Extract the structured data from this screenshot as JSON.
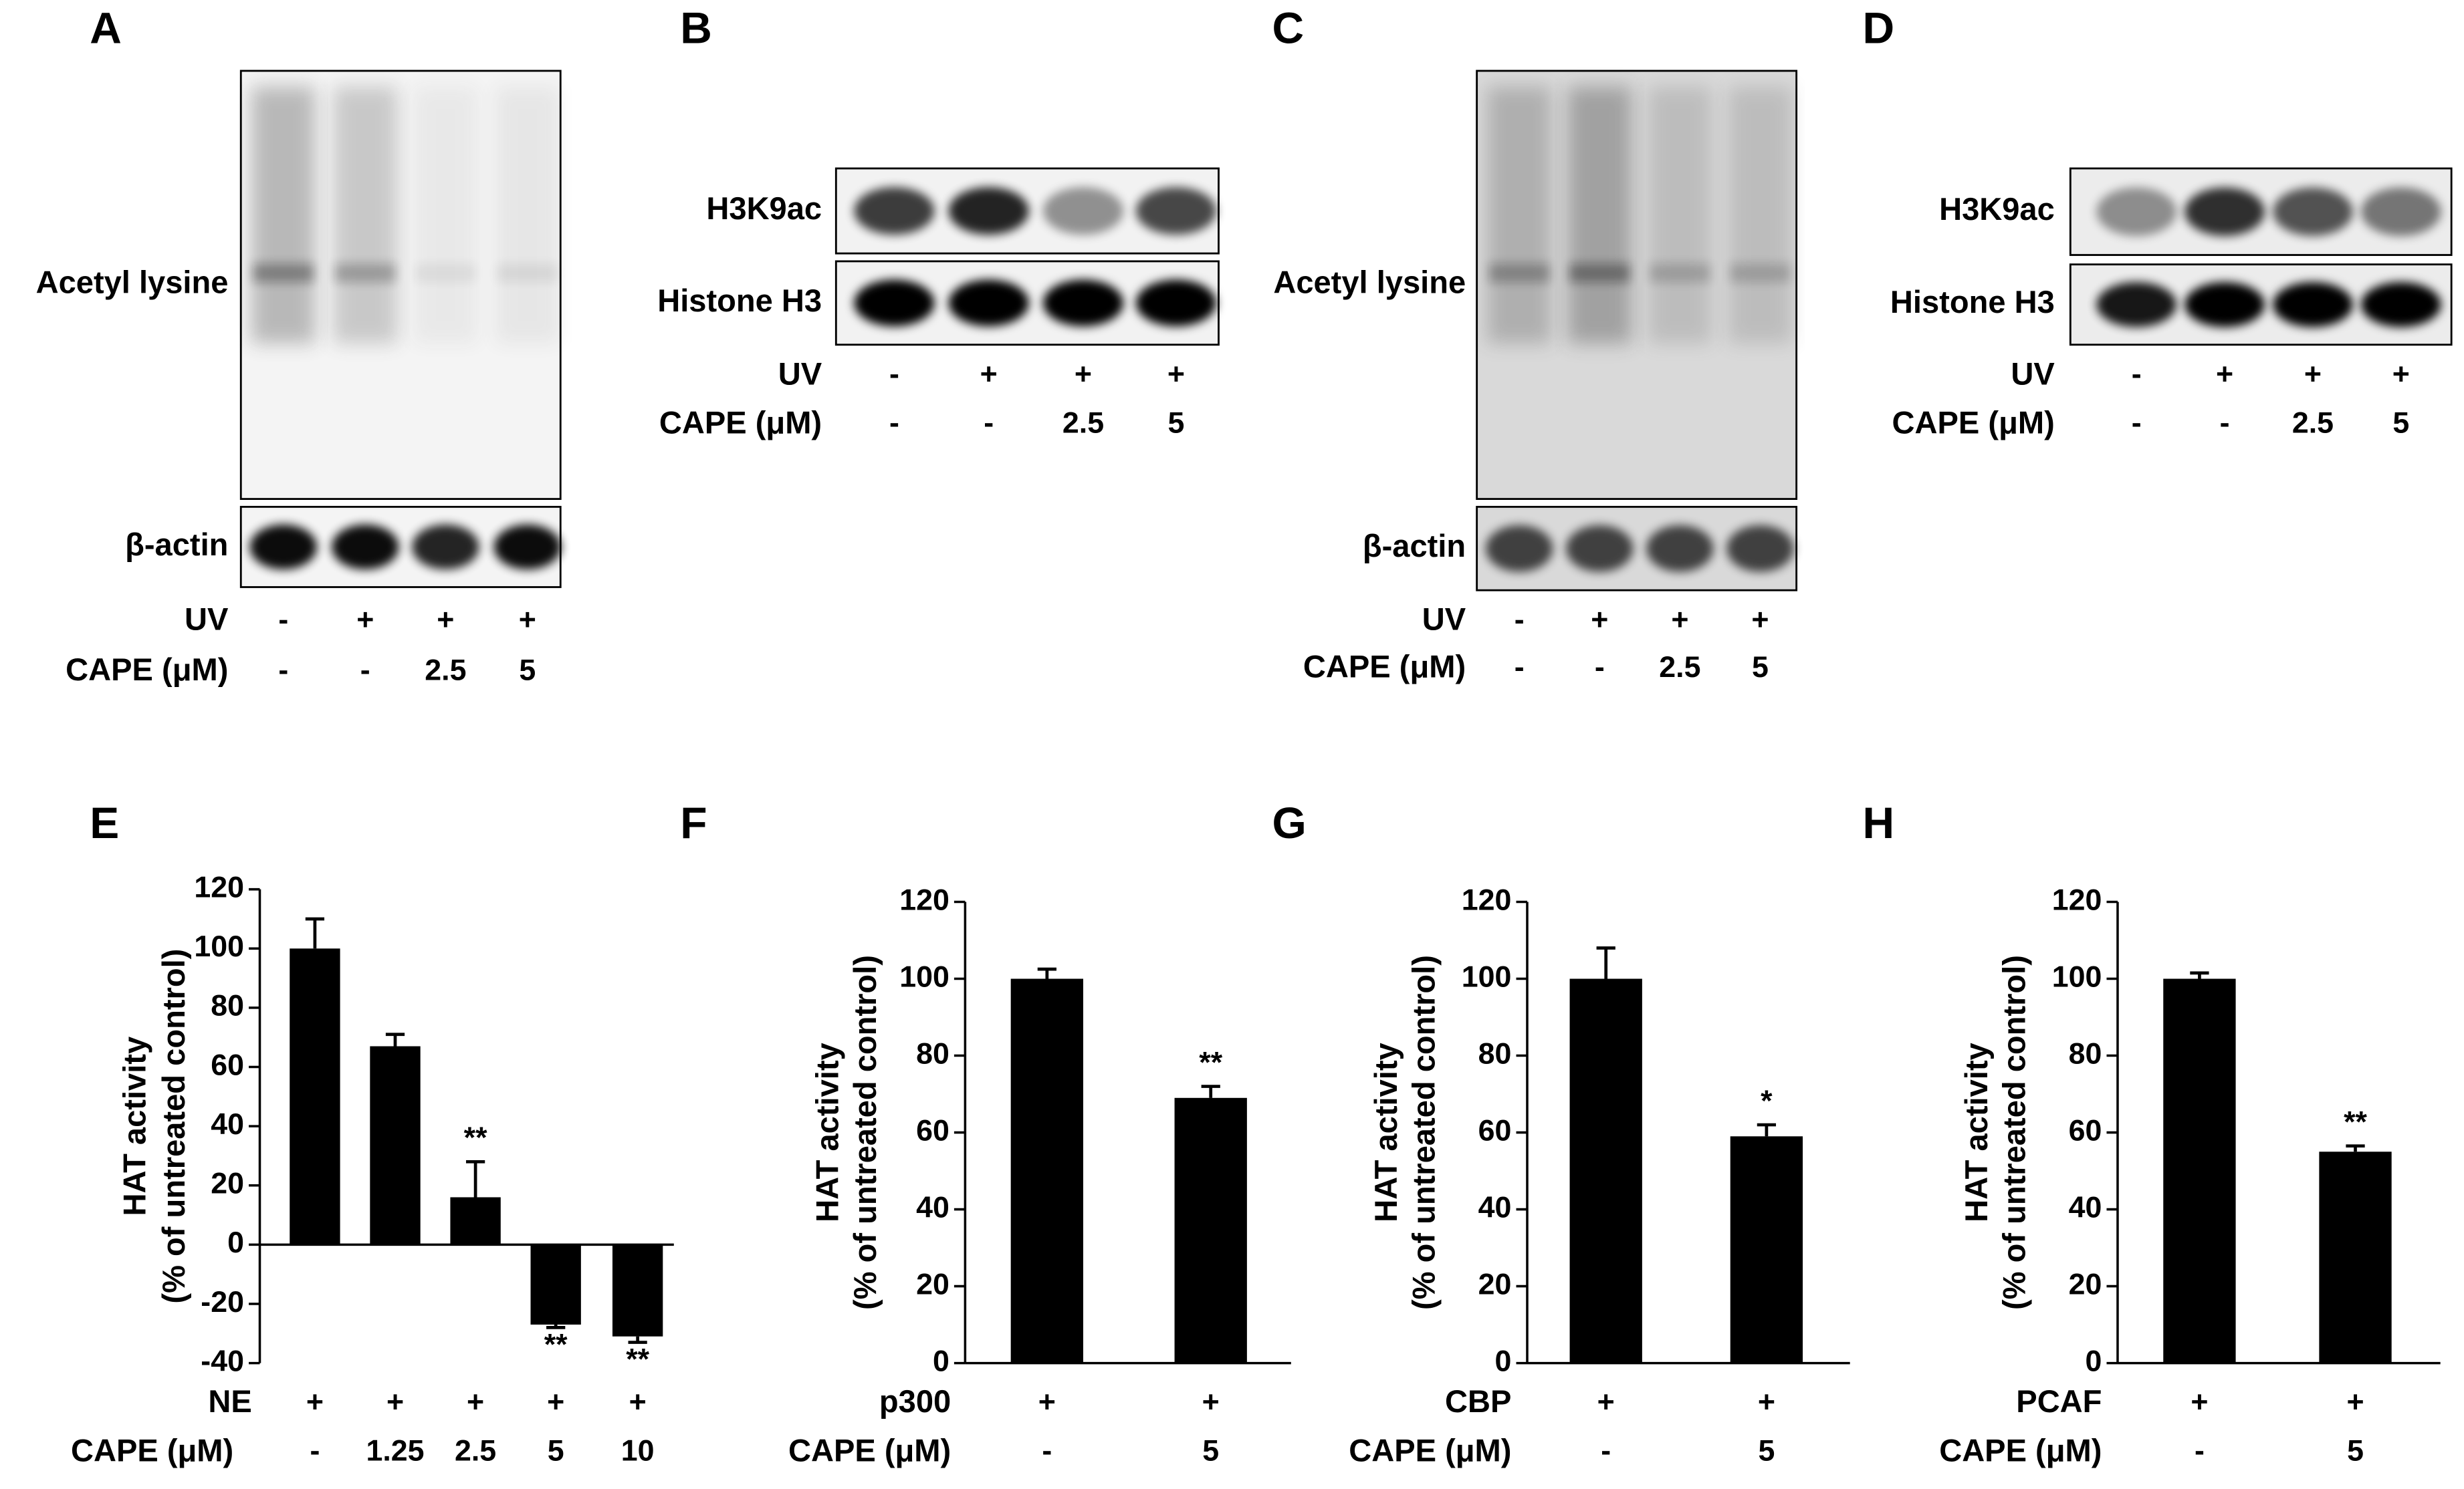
{
  "blots": [
    {
      "panel": "A",
      "rows": [
        {
          "label": "Acetyl lysine"
        },
        {
          "label": "β-actin"
        }
      ],
      "treatments": [
        {
          "name": "UV",
          "labels": [
            "-",
            "+",
            "+",
            "+"
          ]
        },
        {
          "name": "CAPE (μM)",
          "labels": [
            "-",
            "-",
            "2.5",
            "5"
          ]
        }
      ]
    },
    {
      "panel": "B",
      "rows": [
        {
          "label": "H3K9ac"
        },
        {
          "label": "Histone H3"
        }
      ],
      "treatments": [
        {
          "name": "UV",
          "labels": [
            "-",
            "+",
            "+",
            "+"
          ]
        },
        {
          "name": "CAPE (μM)",
          "labels": [
            "-",
            "-",
            "2.5",
            "5"
          ]
        }
      ]
    },
    {
      "panel": "C",
      "rows": [
        {
          "label": "Acetyl lysine"
        },
        {
          "label": "β-actin"
        }
      ],
      "treatments": [
        {
          "name": "UV",
          "labels": [
            "-",
            "+",
            "+",
            "+"
          ]
        },
        {
          "name": "CAPE (μM)",
          "labels": [
            "-",
            "-",
            "2.5",
            "5"
          ]
        }
      ]
    },
    {
      "panel": "D",
      "rows": [
        {
          "label": "H3K9ac"
        },
        {
          "label": "Histone H3"
        }
      ],
      "treatments": [
        {
          "name": "UV",
          "labels": [
            "-",
            "+",
            "+",
            "+"
          ]
        },
        {
          "name": "CAPE (μM)",
          "labels": [
            "-",
            "-",
            "2.5",
            "5"
          ]
        }
      ]
    }
  ],
  "chart_data": [
    {
      "type": "bar",
      "panel": "E",
      "ylabel": [
        "HAT activity",
        "(% of untreated control)"
      ],
      "color": "#000000",
      "values": [
        100,
        67,
        16,
        -27,
        -31
      ],
      "errors": [
        10,
        4,
        12,
        1,
        2
      ],
      "annotations": [
        null,
        null,
        "**",
        "**",
        "**"
      ],
      "treatments": [
        {
          "name": "NE",
          "labels": [
            "+",
            "+",
            "+",
            "+",
            "+"
          ]
        },
        {
          "name": "CAPE (μM)",
          "labels": [
            "-",
            "1.25",
            "2.5",
            "5",
            "10"
          ]
        }
      ],
      "ylim": [
        -40,
        120
      ],
      "yticks": [
        -40,
        -20,
        0,
        20,
        40,
        60,
        80,
        100,
        120
      ]
    },
    {
      "type": "bar",
      "panel": "F",
      "ylabel": [
        "HAT activity",
        "(% of untreated control)"
      ],
      "color": "#000000",
      "values": [
        100,
        69
      ],
      "errors": [
        2.5,
        3
      ],
      "annotations": [
        null,
        "**"
      ],
      "treatments": [
        {
          "name": "p300",
          "labels": [
            "+",
            "+"
          ]
        },
        {
          "name": "CAPE (μM)",
          "labels": [
            "-",
            "5"
          ]
        }
      ],
      "ylim": [
        0,
        120
      ],
      "yticks": [
        0,
        20,
        40,
        60,
        80,
        100,
        120
      ]
    },
    {
      "type": "bar",
      "panel": "G",
      "ylabel": [
        "HAT activity",
        "(% of untreated control)"
      ],
      "color": "#000000",
      "values": [
        100,
        59
      ],
      "errors": [
        8,
        3
      ],
      "annotations": [
        null,
        "*"
      ],
      "treatments": [
        {
          "name": "CBP",
          "labels": [
            "+",
            "+"
          ]
        },
        {
          "name": "CAPE (μM)",
          "labels": [
            "-",
            "5"
          ]
        }
      ],
      "ylim": [
        0,
        120
      ],
      "yticks": [
        0,
        20,
        40,
        60,
        80,
        100,
        120
      ]
    },
    {
      "type": "bar",
      "panel": "H",
      "ylabel": [
        "HAT activity",
        "(% of untreated control)"
      ],
      "color": "#000000",
      "values": [
        100,
        55
      ],
      "errors": [
        1.5,
        1.5
      ],
      "annotations": [
        null,
        "**"
      ],
      "treatments": [
        {
          "name": "PCAF",
          "labels": [
            "+",
            "+"
          ]
        },
        {
          "name": "CAPE (μM)",
          "labels": [
            "-",
            "5"
          ]
        }
      ],
      "ylim": [
        0,
        120
      ],
      "yticks": [
        0,
        20,
        40,
        60,
        80,
        100,
        120
      ]
    }
  ]
}
